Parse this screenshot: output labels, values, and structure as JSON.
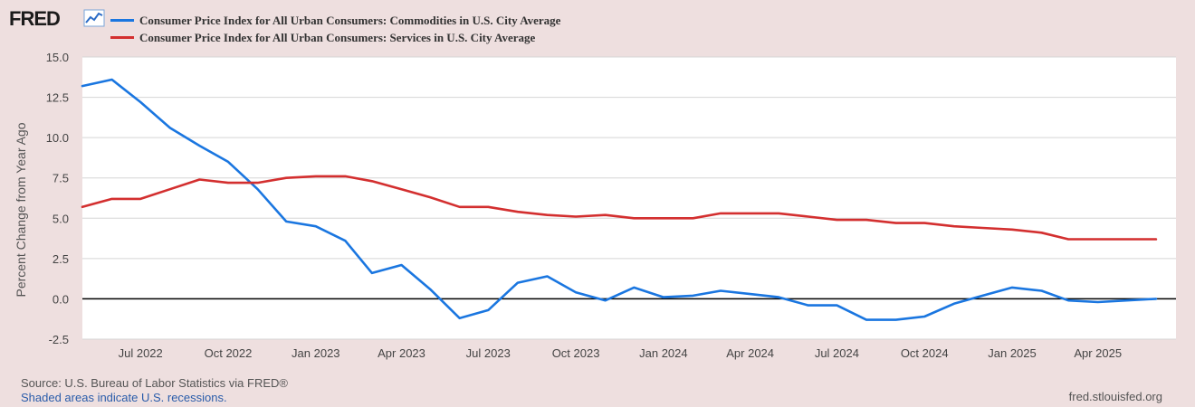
{
  "brand": {
    "logo_text": "FRED",
    "logo_icon": "chart-line-icon"
  },
  "colors": {
    "background": "#eedfdf",
    "plot": "#ffffff",
    "commodities": "#1a76e0",
    "services": "#d32f2f",
    "zero_line": "#000000"
  },
  "chart_data": {
    "type": "line",
    "title": "",
    "xlabel": "",
    "ylabel": "Percent Change from Year Ago",
    "ylim": [
      -2.5,
      15.0
    ],
    "yticks": [
      "15.0",
      "12.5",
      "10.0",
      "7.5",
      "5.0",
      "2.5",
      "0.0",
      "-2.5"
    ],
    "ytick_values": [
      15.0,
      12.5,
      10.0,
      7.5,
      5.0,
      2.5,
      0.0,
      -2.5
    ],
    "xticks": [
      "Jul 2022",
      "Oct 2022",
      "Jan 2023",
      "Apr 2023",
      "Jul 2023",
      "Oct 2023",
      "Jan 2024",
      "Apr 2024",
      "Jul 2024",
      "Oct 2024",
      "Jan 2025",
      "Apr 2025"
    ],
    "xtick_dates": [
      "2022-07",
      "2022-10",
      "2023-01",
      "2023-04",
      "2023-07",
      "2023-10",
      "2024-01",
      "2024-04",
      "2024-07",
      "2024-10",
      "2025-01",
      "2025-04"
    ],
    "x": [
      "2022-05",
      "2022-06",
      "2022-07",
      "2022-08",
      "2022-09",
      "2022-10",
      "2022-11",
      "2022-12",
      "2023-01",
      "2023-02",
      "2023-03",
      "2023-04",
      "2023-05",
      "2023-06",
      "2023-07",
      "2023-08",
      "2023-09",
      "2023-10",
      "2023-11",
      "2023-12",
      "2024-01",
      "2024-02",
      "2024-03",
      "2024-04",
      "2024-05",
      "2024-06",
      "2024-07",
      "2024-08",
      "2024-09",
      "2024-10",
      "2024-11",
      "2024-12",
      "2025-01",
      "2025-02",
      "2025-03",
      "2025-04",
      "2025-05",
      "2025-06"
    ],
    "x_end": "2025-06-22",
    "grid": true,
    "legend_position": "top",
    "series": [
      {
        "name": "Consumer Price Index for All Urban Consumers: Commodities in U.S. City Average",
        "color": "#1a76e0",
        "values": [
          13.2,
          13.6,
          12.2,
          10.6,
          9.5,
          8.5,
          6.8,
          4.8,
          4.5,
          3.6,
          1.6,
          2.1,
          0.6,
          -1.2,
          -0.7,
          1.0,
          1.4,
          0.4,
          -0.1,
          0.7,
          0.1,
          0.2,
          0.5,
          0.3,
          0.1,
          -0.4,
          -0.4,
          -1.3,
          -1.3,
          -1.1,
          -0.3,
          0.2,
          0.7,
          0.5,
          -0.1,
          -0.2,
          -0.1,
          0.0
        ]
      },
      {
        "name": "Consumer Price Index for All Urban Consumers: Services in U.S. City Average",
        "color": "#d32f2f",
        "values": [
          5.7,
          6.2,
          6.2,
          6.8,
          7.4,
          7.2,
          7.2,
          7.5,
          7.6,
          7.6,
          7.3,
          6.8,
          6.3,
          5.7,
          5.7,
          5.4,
          5.2,
          5.1,
          5.2,
          5.0,
          5.0,
          5.0,
          5.3,
          5.3,
          5.3,
          5.1,
          4.9,
          4.9,
          4.7,
          4.7,
          4.5,
          4.4,
          4.3,
          4.1,
          3.7,
          3.7,
          3.7,
          3.7
        ]
      }
    ]
  },
  "footer": {
    "source": "Source: U.S. Bureau of Labor Statistics via FRED®",
    "recession_note": "Shaded areas indicate U.S. recessions.",
    "site": "fred.stlouisfed.org"
  }
}
